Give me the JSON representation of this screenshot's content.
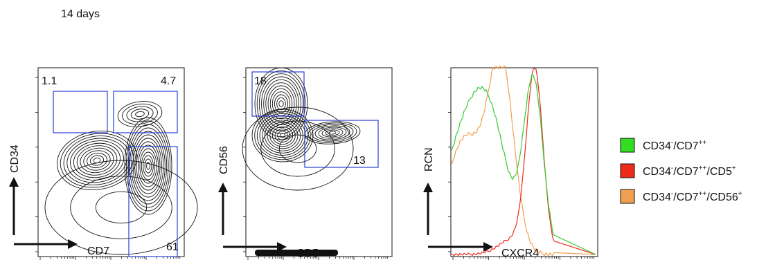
{
  "header": {
    "title": "14 days"
  },
  "chart_data": [
    {
      "type": "contour",
      "xlabel": "CD7",
      "ylabel": "CD34",
      "gates": [
        {
          "label": "1.1",
          "value": 1.1
        },
        {
          "label": "4.7",
          "value": 4.7
        },
        {
          "label": "61",
          "value": 61
        }
      ]
    },
    {
      "type": "contour",
      "xlabel": "CD5",
      "ylabel": "CD56",
      "gates": [
        {
          "label": "18",
          "value": 18
        },
        {
          "label": "13",
          "value": 13
        }
      ]
    },
    {
      "type": "line",
      "xlabel": "CXCR4",
      "ylabel": "RCN",
      "series": [
        {
          "name": "CD34-/CD7++",
          "color": "#33cc33"
        },
        {
          "name": "CD34-/CD7++/CD5+",
          "color": "#ee2a1a"
        },
        {
          "name": "CD34-/CD7++/CD56+",
          "color": "#f0a050"
        }
      ]
    }
  ],
  "legend": {
    "items": [
      {
        "parts": [
          "CD34",
          "-",
          "/CD7",
          "++"
        ],
        "color": "#33dd22"
      },
      {
        "parts": [
          "CD34",
          "-",
          "/CD7",
          "++",
          "/CD5",
          "+"
        ],
        "color": "#ee2a1a"
      },
      {
        "parts": [
          "CD34",
          "-",
          "/CD7",
          "++",
          "/CD56",
          "+"
        ],
        "color": "#f0a050"
      }
    ]
  }
}
